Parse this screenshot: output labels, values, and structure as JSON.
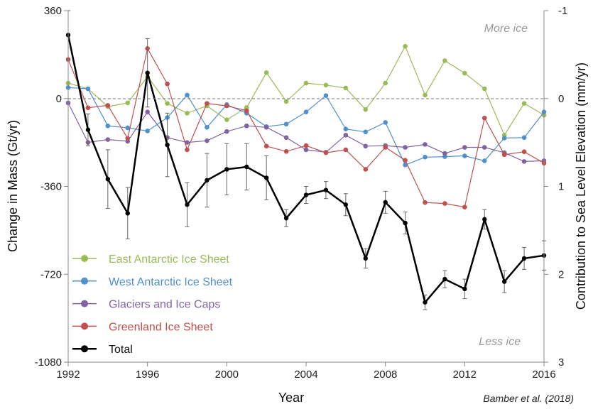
{
  "chart_data": {
    "type": "line",
    "x": [
      1992,
      1993,
      1994,
      1995,
      1996,
      1997,
      1998,
      1999,
      2000,
      2001,
      2002,
      2003,
      2004,
      2005,
      2006,
      2007,
      2008,
      2009,
      2010,
      2011,
      2012,
      2013,
      2014,
      2015,
      2016
    ],
    "xlabel": "Year",
    "xlim": [
      1992,
      2016
    ],
    "xticks": [
      "1992",
      "1996",
      "2000",
      "2004",
      "2008",
      "2012",
      "2016"
    ],
    "ylabel": "Change in Mass (Gt/yr)",
    "ylim": [
      -1080,
      360
    ],
    "yticks": [
      "360",
      "0",
      "-360",
      "-720",
      "-1080"
    ],
    "y2label": "Contribution to Sea Level Elevation (mm/yr)",
    "y2lim": [
      -1,
      3
    ],
    "y2ticks": [
      "-1",
      "0",
      "1",
      "2",
      "3"
    ],
    "zero_line": true,
    "legend_position": "lower-left",
    "series": [
      {
        "name": "East Antarctic Ice Sheet",
        "color": "#9bbb59",
        "values": [
          63,
          40,
          -33,
          -18,
          90,
          -20,
          -60,
          -30,
          -87,
          -37,
          106,
          -12,
          63,
          55,
          43,
          -45,
          63,
          214,
          14,
          155,
          104,
          40,
          -150,
          -20,
          -68
        ]
      },
      {
        "name": "West Antarctic Ice Sheet",
        "color": "#4f90cd",
        "values": [
          45,
          40,
          -112,
          -120,
          -133,
          -78,
          14,
          -118,
          -25,
          -60,
          -115,
          -105,
          -55,
          12,
          -125,
          -137,
          -98,
          -272,
          -240,
          -238,
          -235,
          -255,
          -162,
          -160,
          -55
        ]
      },
      {
        "name": "Glaciers and Ice Caps",
        "color": "#8064a2",
        "values": [
          -18,
          -180,
          -168,
          -175,
          -55,
          -160,
          -180,
          -173,
          -135,
          -112,
          -118,
          -160,
          -210,
          -220,
          -150,
          -195,
          -193,
          -200,
          -188,
          -225,
          -200,
          -200,
          -222,
          -258,
          -255
        ]
      },
      {
        "name": "Greenland Ice Sheet",
        "color": "#c0504d",
        "values": [
          160,
          -38,
          -28,
          -163,
          205,
          60,
          -210,
          -20,
          -30,
          -50,
          -195,
          -217,
          -193,
          -222,
          -210,
          -290,
          -200,
          -253,
          -426,
          -430,
          -445,
          -80,
          -230,
          -218,
          -265
        ]
      },
      {
        "name": "Total",
        "color": "#000000",
        "values": [
          260,
          -128,
          -330,
          -470,
          105,
          -190,
          -435,
          -335,
          -290,
          -280,
          -325,
          -490,
          -395,
          -375,
          -435,
          -655,
          -425,
          -510,
          -835,
          -740,
          -780,
          -495,
          -750,
          -655,
          -643
        ],
        "error": [
          100,
          65,
          120,
          105,
          140,
          130,
          90,
          110,
          105,
          95,
          90,
          35,
          35,
          35,
          45,
          40,
          45,
          45,
          30,
          35,
          40,
          40,
          45,
          45,
          60
        ]
      }
    ],
    "annotations": [
      "More ice",
      "Less ice",
      "Bamber et al. (2018)"
    ]
  }
}
